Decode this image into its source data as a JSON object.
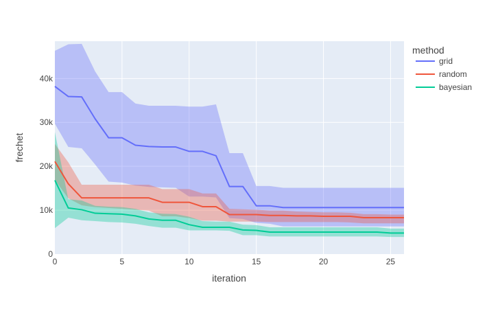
{
  "chart_data": {
    "type": "line",
    "xlabel": "iteration",
    "ylabel": "frechet",
    "xlim": [
      0,
      26
    ],
    "ylim": [
      0,
      48500
    ],
    "x_ticks": [
      0,
      5,
      10,
      15,
      20,
      25
    ],
    "x_tick_labels": [
      "0",
      "5",
      "10",
      "15",
      "20",
      "25"
    ],
    "y_ticks": [
      0,
      10000,
      20000,
      30000,
      40000
    ],
    "y_tick_labels": [
      "0",
      "10k",
      "20k",
      "30k",
      "40k"
    ],
    "grid": true,
    "plot_background": "#E5ECF6",
    "legend": {
      "title": "method",
      "position": "right"
    },
    "x": [
      0,
      1,
      2,
      3,
      4,
      5,
      6,
      7,
      8,
      9,
      10,
      11,
      12,
      13,
      14,
      15,
      16,
      17,
      18,
      19,
      20,
      21,
      22,
      23,
      24,
      25,
      26
    ],
    "series": [
      {
        "name": "grid",
        "color": "#636EFA",
        "band_color": "rgba(99,110,250,0.35)",
        "values": [
          38200,
          35900,
          35800,
          30800,
          26500,
          26500,
          24800,
          24500,
          24400,
          24400,
          23400,
          23400,
          22400,
          15400,
          15400,
          11000,
          11000,
          10600,
          10600,
          10600,
          10600,
          10600,
          10600,
          10600,
          10600,
          10600,
          10600
        ],
        "upper": [
          46300,
          47800,
          47900,
          41600,
          36900,
          36900,
          34300,
          33800,
          33800,
          33800,
          33600,
          33600,
          34100,
          23000,
          23000,
          15500,
          15500,
          15100,
          15100,
          15100,
          15100,
          15100,
          15100,
          15100,
          15100,
          15100,
          15100
        ],
        "lower": [
          29700,
          24400,
          24100,
          20400,
          16500,
          16300,
          15600,
          15300,
          15200,
          15100,
          13100,
          13100,
          12900,
          8200,
          8000,
          7100,
          6900,
          6300,
          6300,
          6300,
          6300,
          6300,
          6300,
          6300,
          6300,
          6300,
          6300
        ]
      },
      {
        "name": "random",
        "color": "#EF553B",
        "band_color": "rgba(239,85,59,0.35)",
        "values": [
          21100,
          16000,
          12800,
          12800,
          12800,
          12800,
          12800,
          12800,
          11800,
          11800,
          11800,
          10800,
          10800,
          9000,
          9000,
          9000,
          8800,
          8800,
          8700,
          8700,
          8600,
          8600,
          8600,
          8300,
          8300,
          8300,
          8300
        ],
        "upper": [
          25100,
          20900,
          15800,
          15800,
          15800,
          15800,
          15800,
          15800,
          14800,
          14800,
          14800,
          13800,
          13800,
          10300,
          10200,
          10100,
          9900,
          9900,
          9700,
          9600,
          9500,
          9500,
          9400,
          9100,
          9100,
          9000,
          9000
        ],
        "lower": [
          16900,
          12700,
          11100,
          10700,
          10500,
          10300,
          10100,
          9900,
          8600,
          8600,
          8200,
          7600,
          7600,
          7400,
          7400,
          7400,
          7300,
          7300,
          7300,
          7300,
          7300,
          7300,
          7200,
          7000,
          7000,
          7000,
          7000
        ]
      },
      {
        "name": "bayesian",
        "color": "#00CC96",
        "band_color": "rgba(0,204,150,0.35)",
        "values": [
          16800,
          10500,
          10100,
          9300,
          9200,
          9100,
          8700,
          8000,
          7700,
          7700,
          6700,
          6100,
          6100,
          6100,
          5500,
          5400,
          5000,
          5000,
          5000,
          5000,
          5000,
          5000,
          5000,
          5000,
          5000,
          4800,
          4800
        ],
        "upper": [
          27800,
          12500,
          12200,
          11000,
          10800,
          10700,
          10300,
          9500,
          9200,
          9100,
          8500,
          7500,
          7400,
          7400,
          6700,
          6600,
          6100,
          6100,
          6100,
          6100,
          6100,
          6100,
          6100,
          6100,
          6100,
          5800,
          5800
        ],
        "lower": [
          5900,
          8300,
          7700,
          7500,
          7300,
          7200,
          6900,
          6400,
          6000,
          6000,
          5400,
          5400,
          5400,
          5300,
          4300,
          4300,
          4000,
          4000,
          4000,
          4000,
          4000,
          4000,
          4000,
          4000,
          4000,
          3900,
          3900
        ]
      }
    ]
  }
}
